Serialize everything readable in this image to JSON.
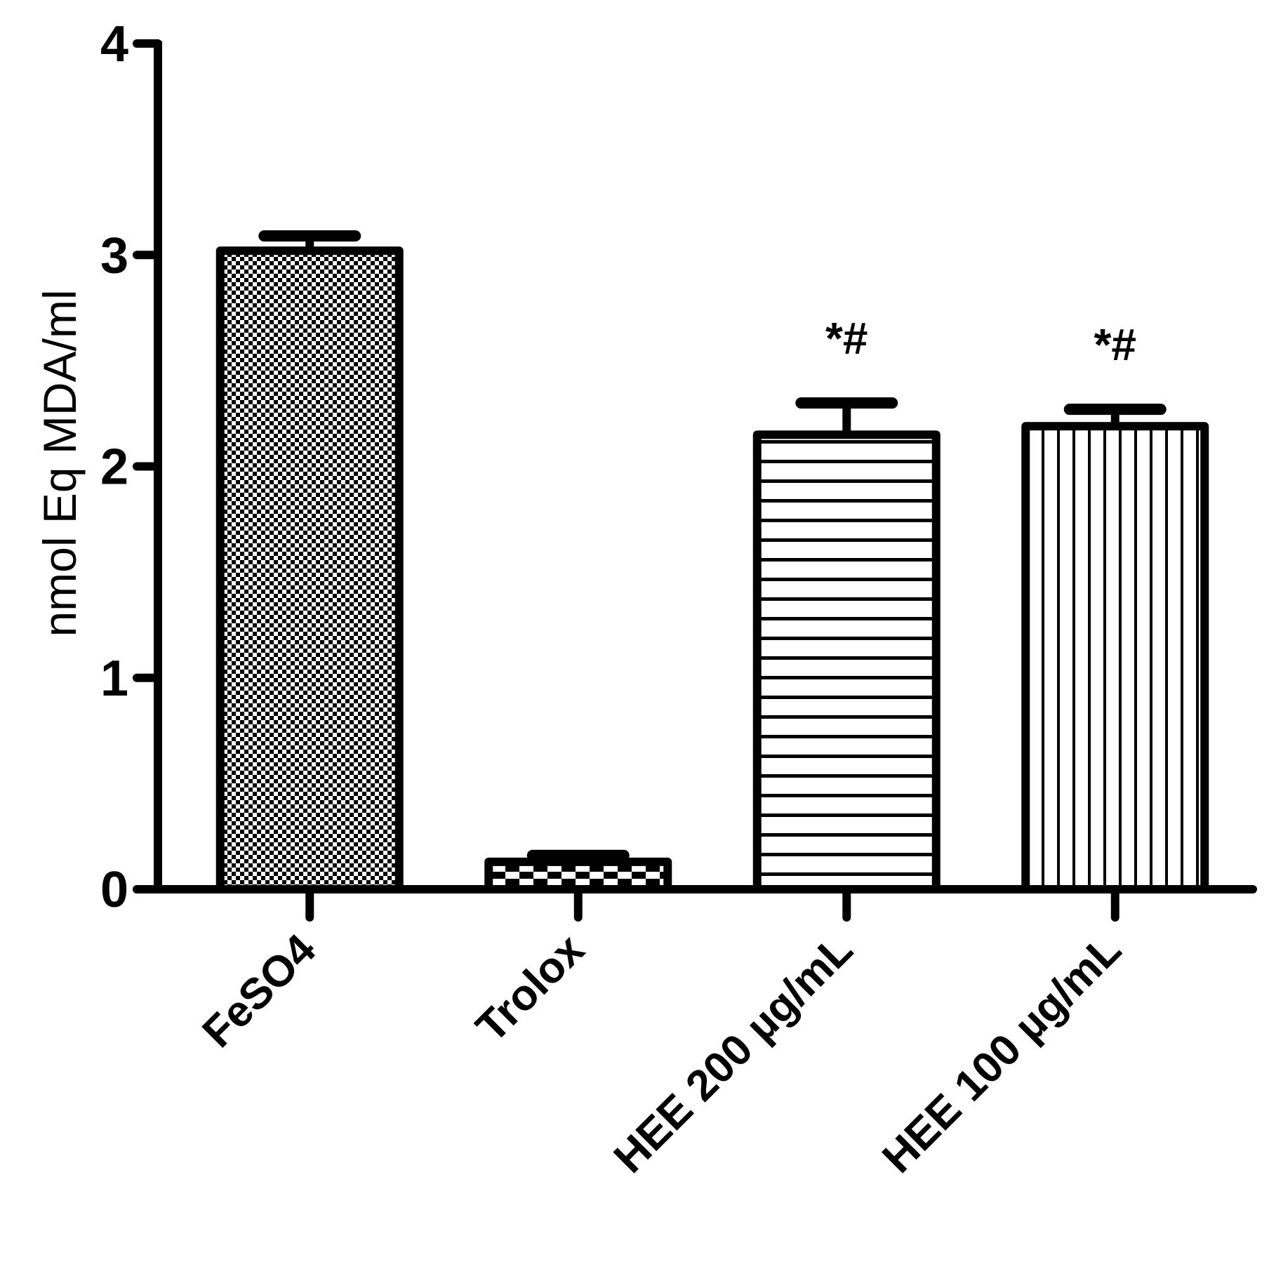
{
  "chart_data": {
    "type": "bar",
    "title": "",
    "xlabel": "",
    "ylabel": "nmol Eq MDA/ml",
    "ylim": [
      0,
      4
    ],
    "yticks": [
      0,
      1,
      2,
      3,
      4
    ],
    "grid": false,
    "categories": [
      "FeSO4",
      "Trolox",
      "HEE 200 µg/mL",
      "HEE 100 µg/mL"
    ],
    "values": [
      3.02,
      0.13,
      2.15,
      2.19
    ],
    "errors": [
      0.07,
      0.03,
      0.15,
      0.08
    ],
    "annotations": [
      "",
      "",
      "*#",
      "*#"
    ],
    "patterns": [
      "fine-checker",
      "coarse-checker",
      "horizontal-lines",
      "vertical-lines"
    ]
  }
}
